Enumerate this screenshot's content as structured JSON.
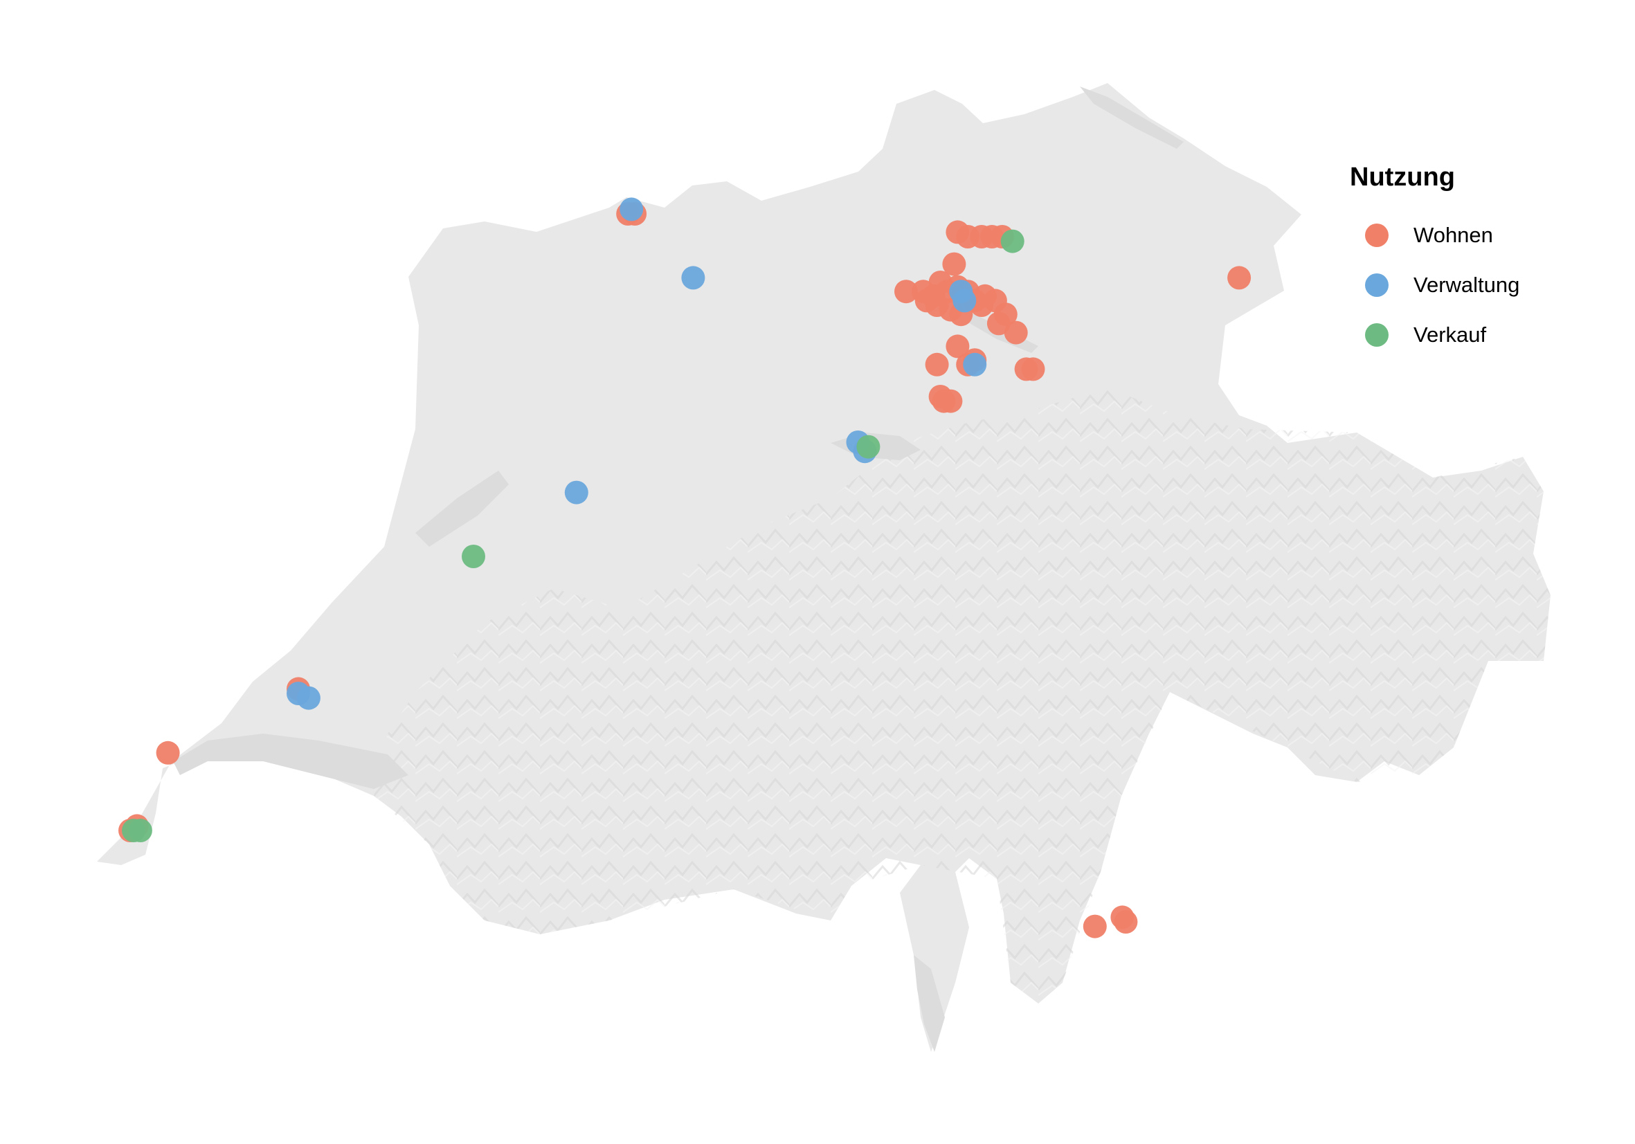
{
  "map": {
    "title": "",
    "legend_title": "Nutzung",
    "categories": [
      {
        "key": "wohnen",
        "label": "Wohnen",
        "color": "#F08068"
      },
      {
        "key": "verwaltung",
        "label": "Verwaltung",
        "color": "#6AA7DC"
      },
      {
        "key": "verkauf",
        "label": "Verkauf",
        "color": "#6DBB82"
      }
    ],
    "land_color": "#E8E8E8",
    "lake_color": "#DCDCDC"
  },
  "chart_data": {
    "type": "scatter",
    "legend_placement": "top-right",
    "series": [
      {
        "name": "Wohnen",
        "points": [
          [
            7.59,
            47.56
          ],
          [
            7.61,
            47.56
          ],
          [
            8.55,
            47.52
          ],
          [
            8.58,
            47.51
          ],
          [
            8.62,
            47.51
          ],
          [
            8.65,
            47.51
          ],
          [
            8.68,
            47.51
          ],
          [
            8.54,
            47.45
          ],
          [
            8.5,
            47.41
          ],
          [
            8.4,
            47.39
          ],
          [
            8.45,
            47.39
          ],
          [
            8.48,
            47.38
          ],
          [
            8.52,
            47.39
          ],
          [
            8.55,
            47.4
          ],
          [
            8.58,
            47.39
          ],
          [
            8.6,
            47.37
          ],
          [
            8.63,
            47.38
          ],
          [
            8.66,
            47.37
          ],
          [
            8.62,
            47.36
          ],
          [
            8.46,
            47.37
          ],
          [
            8.49,
            47.36
          ],
          [
            8.53,
            47.35
          ],
          [
            8.56,
            47.34
          ],
          [
            8.69,
            47.34
          ],
          [
            8.67,
            47.32
          ],
          [
            8.72,
            47.3
          ],
          [
            8.55,
            47.27
          ],
          [
            8.6,
            47.24
          ],
          [
            8.58,
            47.23
          ],
          [
            8.49,
            47.23
          ],
          [
            8.75,
            47.22
          ],
          [
            8.77,
            47.22
          ],
          [
            8.5,
            47.16
          ],
          [
            8.53,
            47.15
          ],
          [
            8.51,
            47.15
          ],
          [
            9.37,
            47.42
          ],
          [
            6.63,
            46.52
          ],
          [
            6.25,
            46.38
          ],
          [
            6.14,
            46.21
          ],
          [
            6.16,
            46.22
          ],
          [
            8.95,
            46.0
          ],
          [
            9.03,
            46.02
          ],
          [
            9.04,
            46.01
          ]
        ]
      },
      {
        "name": "Verwaltung",
        "points": [
          [
            7.6,
            47.57
          ],
          [
            7.78,
            47.42
          ],
          [
            8.56,
            47.39
          ],
          [
            8.57,
            47.37
          ],
          [
            8.6,
            47.23
          ],
          [
            8.26,
            47.06
          ],
          [
            8.28,
            47.04
          ],
          [
            7.44,
            46.95
          ],
          [
            6.63,
            46.51
          ],
          [
            6.66,
            46.5
          ]
        ]
      },
      {
        "name": "Verkauf",
        "points": [
          [
            8.71,
            47.5
          ],
          [
            8.29,
            47.05
          ],
          [
            7.14,
            46.81
          ],
          [
            6.15,
            46.21
          ],
          [
            6.17,
            46.21
          ]
        ]
      }
    ]
  }
}
